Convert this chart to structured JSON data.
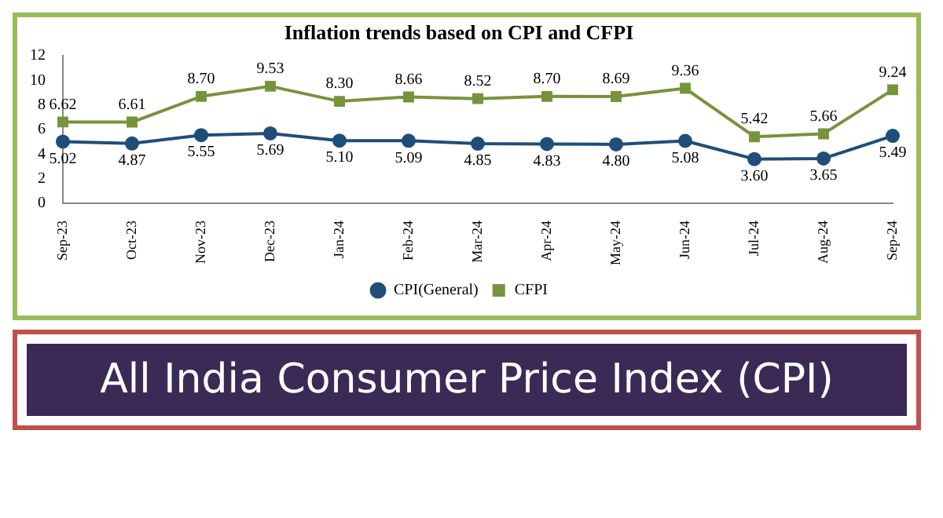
{
  "chart_data": {
    "type": "line",
    "title": "Inflation trends based on CPI and CFPI",
    "subtitle": "All India Consumer Price Index (CPI)",
    "categories": [
      "Sep-23",
      "Oct-23",
      "Nov-23",
      "Dec-23",
      "Jan-24",
      "Feb-24",
      "Mar-24",
      "Apr-24",
      "May-24",
      "Jun-24",
      "Jul-24",
      "Aug-24",
      "Sep-24"
    ],
    "series": [
      {
        "name": "CPI(General)",
        "color": "#1f4e79",
        "marker": "circle",
        "values": [
          5.02,
          4.87,
          5.55,
          5.69,
          5.1,
          5.09,
          4.85,
          4.83,
          4.8,
          5.08,
          3.6,
          3.65,
          5.49
        ],
        "value_labels": [
          "5.02",
          "4.87",
          "5.55",
          "5.69",
          "5.10",
          "5.09",
          "4.85",
          "4.83",
          "4.80",
          "5.08",
          "3.60",
          "3.65",
          "5.49"
        ]
      },
      {
        "name": "CFPI",
        "color": "#77933c",
        "marker": "square",
        "values": [
          6.62,
          6.61,
          8.7,
          9.53,
          8.3,
          8.66,
          8.52,
          8.7,
          8.69,
          9.36,
          5.42,
          5.66,
          9.24
        ],
        "value_labels": [
          "6.62",
          "6.61",
          "8.70",
          "9.53",
          "8.30",
          "8.66",
          "8.52",
          "8.70",
          "8.69",
          "9.36",
          "5.42",
          "5.66",
          "9.24"
        ]
      }
    ],
    "ylim": [
      0,
      12
    ],
    "yticks": [
      0,
      2,
      4,
      6,
      8,
      10,
      12
    ],
    "grid": false,
    "legend": "bottom",
    "line_style": "solid"
  }
}
